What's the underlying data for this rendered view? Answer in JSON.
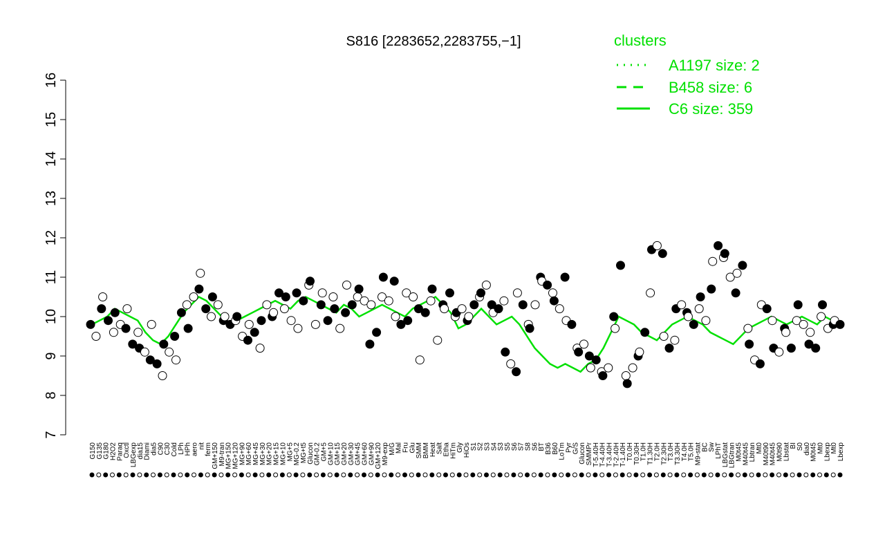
{
  "chart_data": {
    "type": "scatter",
    "title": "S816 [2283652,2283755,−1]",
    "xlabel": "",
    "ylabel": "",
    "ylim": [
      7,
      16
    ],
    "yticks": [
      7,
      8,
      9,
      10,
      11,
      12,
      13,
      14,
      15,
      16
    ],
    "grid": false,
    "legend": {
      "title": "clusters",
      "placement": "top-right",
      "entries": [
        {
          "label": "A1197 size: 2",
          "style": "dotted"
        },
        {
          "label": "B458 size: 6",
          "style": "dashed"
        },
        {
          "label": "C6 size: 359",
          "style": "solid"
        }
      ]
    },
    "colors": {
      "line": "#00e000",
      "points": "#000000",
      "text": "#00e000"
    },
    "x_tick_labels": [
      [
        "G150",
        0.01
      ],
      [
        "G135",
        0.04
      ],
      [
        "G180",
        0.04
      ],
      [
        "H2O2",
        0.07
      ],
      [
        "Paraq",
        0.09
      ],
      [
        "Oxctl",
        0.11
      ],
      [
        "LBGexp",
        0.12
      ],
      [
        "dia15",
        0.15
      ],
      [
        "Diami",
        0.16
      ],
      [
        "dia5",
        0.19
      ],
      [
        "C90",
        0.21
      ],
      [
        "C30",
        0.24
      ],
      [
        "Cold",
        0.26
      ],
      [
        "LPh",
        0.28
      ],
      [
        "HPh",
        0.29
      ],
      [
        "aero",
        0.32
      ],
      [
        "nit",
        0.34
      ],
      [
        "ferm",
        0.36
      ],
      [
        "GM+150",
        0.39
      ],
      [
        "M9-tran",
        0.4
      ],
      [
        "MG+150",
        0.41
      ],
      [
        "MG+120",
        0.42
      ],
      [
        "MG+90",
        0.43
      ],
      [
        "MG+60",
        0.44
      ],
      [
        "MG+45",
        0.45
      ],
      [
        "MG+30",
        0.455
      ],
      [
        "MG+20",
        0.46
      ],
      [
        "MG+15",
        0.465
      ],
      [
        "MG+10",
        0.47
      ],
      [
        "MG+5",
        0.475
      ],
      [
        "MG-0.2",
        0.48
      ],
      [
        "MG+t5",
        0.49
      ],
      [
        "Glucon",
        0.5
      ],
      [
        "GM-0.2",
        0.51
      ],
      [
        "GM+5",
        0.515
      ],
      [
        "GM+10",
        0.52
      ],
      [
        "GM+15",
        0.525
      ],
      [
        "GM+20",
        0.53
      ],
      [
        "GM+30",
        0.535
      ],
      [
        "GM+45",
        0.54
      ],
      [
        "GM+60",
        0.545
      ],
      [
        "GM+90",
        0.55
      ],
      [
        "GM+120",
        0.555
      ],
      [
        "M9-exp",
        0.56
      ],
      [
        "M/G",
        0.57
      ],
      [
        "Mal",
        0.59
      ],
      [
        "Fru",
        0.61
      ],
      [
        "Glu",
        0.62
      ],
      [
        "SMM",
        0.63
      ],
      [
        "BMM",
        0.64
      ],
      [
        "Heat",
        0.66
      ],
      [
        "Salt",
        0.68
      ],
      [
        "Etha",
        0.7
      ],
      [
        "HiTm",
        0.71
      ],
      [
        "Gly",
        0.72
      ],
      [
        "HiOs",
        0.74
      ],
      [
        "S1",
        0.76
      ],
      [
        "S2",
        0.77
      ],
      [
        "S3",
        0.79
      ],
      [
        "S4",
        0.8
      ],
      [
        "S3",
        0.81
      ],
      [
        "S5",
        0.82
      ],
      [
        "S6",
        0.83
      ],
      [
        "S7",
        0.85
      ],
      [
        "S8",
        0.87
      ],
      [
        "S6",
        0.88
      ],
      [
        "BT",
        0.9
      ],
      [
        "B36",
        0.91
      ],
      [
        "B60",
        0.92
      ],
      [
        "LoTm",
        0.94
      ],
      [
        "Pyr",
        0.96
      ],
      [
        "G/S",
        0.97
      ],
      [
        "Glucon",
        0.985
      ],
      [
        "SMMPr",
        0.99
      ],
      [
        "T-5.40H",
        1.0
      ],
      [
        "T-4.40H",
        1.0
      ],
      [
        "T-3.40H",
        1.0
      ],
      [
        "T-2.40H",
        1.0
      ],
      [
        "T-1.40H",
        1.0
      ],
      [
        "T0.0H",
        1.0
      ],
      [
        "T0.30H",
        1.0
      ],
      [
        "T1.0H",
        1.0
      ],
      [
        "T1.30H",
        1.0
      ],
      [
        "T2.0H",
        1.0
      ],
      [
        "T2.30H",
        1.0
      ],
      [
        "T3.0H",
        1.0
      ],
      [
        "T3.30H",
        1.0
      ],
      [
        "T4.0H",
        1.0
      ],
      [
        "T5.0H",
        1.0
      ],
      [
        "M9-stat",
        1.0
      ],
      [
        "BC",
        1.0
      ],
      [
        "Sw",
        1.0
      ],
      [
        "LPhT",
        1.0
      ],
      [
        "LBGstat",
        1.0
      ],
      [
        "LBGtran",
        1.0
      ],
      [
        "M0t45",
        1.0
      ],
      [
        "M40t45",
        1.0
      ],
      [
        "Lbtran",
        1.0
      ],
      [
        "Mt0",
        1.0
      ],
      [
        "M40t90",
        1.0
      ],
      [
        "M40t45",
        1.0
      ],
      [
        "M0t90",
        1.0
      ],
      [
        "Lbstat",
        1.0
      ],
      [
        "BI",
        1.0
      ],
      [
        "S0",
        1.0
      ],
      [
        "dia0",
        1.0
      ],
      [
        "M0t45",
        1.0
      ],
      [
        "Mt0",
        1.0
      ],
      [
        "Lbexp",
        1.0
      ],
      [
        "Mt0",
        1.0
      ],
      [
        "Lbexp",
        1.0
      ]
    ],
    "series": [
      {
        "name": "C6 size: 359",
        "kind": "line",
        "values": [
          9.8,
          9.9,
          10.0,
          10.2,
          10.1,
          10.0,
          9.9,
          9.6,
          9.4,
          9.3,
          9.5,
          9.8,
          10.1,
          10.3,
          10.5,
          10.4,
          10.2,
          10.0,
          9.8,
          9.9,
          10.0,
          10.1,
          10.2,
          10.3,
          10.4,
          10.3,
          10.2,
          10.4,
          10.5,
          10.4,
          10.3,
          10.2,
          10.1,
          10.3,
          10.2,
          10.0,
          10.1,
          10.2,
          10.3,
          10.2,
          10.1,
          10.0,
          10.2,
          10.3,
          10.4,
          10.5,
          10.3,
          10.1,
          9.7,
          9.8,
          10.0,
          10.2,
          10.0,
          9.8,
          9.9,
          10.0,
          9.8,
          9.5,
          9.2,
          9.0,
          8.8,
          8.7,
          8.8,
          8.7,
          8.6,
          8.8,
          8.9,
          9.2,
          9.6,
          10.0,
          9.9,
          9.8,
          9.6,
          9.5,
          9.4,
          9.6,
          9.8,
          9.9,
          10.0,
          9.9,
          9.8,
          9.6,
          9.5,
          9.4,
          9.3,
          9.5,
          9.7,
          9.8,
          9.9,
          10.0,
          9.9,
          9.8,
          9.9,
          10.0,
          9.9,
          9.8,
          10.0,
          9.9,
          9.8
        ]
      }
    ],
    "points": [
      9.8,
      9.5,
      10.2,
      10.5,
      9.9,
      9.6,
      10.1,
      9.8,
      9.7,
      10.2,
      9.3,
      9.6,
      9.2,
      9.1,
      8.9,
      9.8,
      8.8,
      8.5,
      9.3,
      9.1,
      9.5,
      8.9,
      10.1,
      10.3,
      9.7,
      10.5,
      10.7,
      11.1,
      10.2,
      10.0,
      10.5,
      10.3,
      9.9,
      10.0,
      9.8,
      9.9,
      10.0,
      9.5,
      9.4,
      9.8,
      9.6,
      9.2,
      9.9,
      10.3,
      10.0,
      10.1,
      10.6,
      10.2,
      10.5,
      9.9,
      10.6,
      9.7,
      10.4,
      10.8,
      10.9,
      9.8,
      10.3,
      10.6,
      9.9,
      10.5,
      10.2,
      9.7,
      10.1,
      10.8,
      10.3,
      10.5,
      10.7,
      10.4,
      9.3,
      10.3,
      9.6,
      10.5,
      11.0,
      10.4,
      10.9,
      10.0,
      9.8,
      10.6,
      9.9,
      10.5,
      10.2,
      8.9,
      10.1,
      10.4,
      10.7,
      9.4,
      10.3,
      10.2,
      10.6,
      10.0,
      10.1,
      10.2,
      9.9,
      10.0,
      10.3,
      10.5,
      10.6,
      10.8,
      10.3,
      10.1,
      10.2,
      10.4,
      9.1,
      8.8,
      8.6,
      10.6,
      10.3,
      9.8,
      9.7,
      10.3,
      11.0,
      10.9,
      10.8,
      10.6,
      10.4,
      10.2,
      11.0,
      9.9,
      9.8,
      9.2,
      9.1,
      9.3,
      9.0,
      8.7,
      8.9,
      8.6,
      8.5,
      8.7,
      10.0,
      9.7,
      11.3,
      8.5,
      8.3,
      8.7,
      9.0,
      9.1,
      9.6,
      10.6,
      11.7,
      11.8,
      11.6,
      9.5,
      9.2,
      9.4,
      10.2,
      10.3,
      10.1,
      10.0,
      9.8,
      10.2,
      10.5,
      9.9,
      10.7,
      11.4,
      11.8,
      11.5,
      11.6,
      11.0,
      10.6,
      11.1,
      11.3,
      9.7,
      9.3,
      8.9,
      8.8,
      10.3,
      10.2,
      9.9,
      9.2,
      9.1,
      9.7,
      9.6,
      9.2,
      9.9,
      10.3,
      9.8,
      9.3,
      9.6,
      9.2,
      10.0,
      10.3,
      9.7,
      9.8,
      9.9,
      9.8
    ]
  }
}
